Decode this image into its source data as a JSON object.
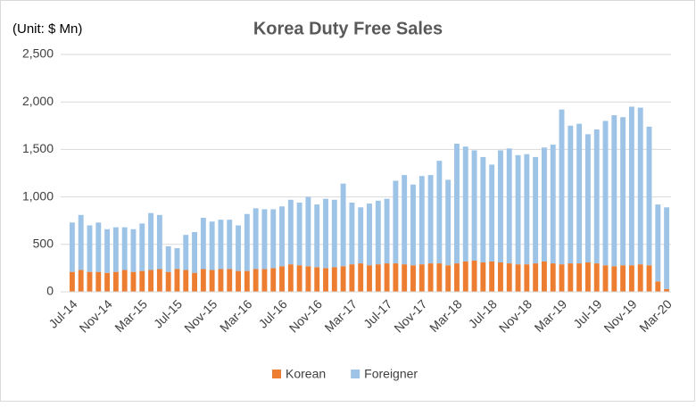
{
  "chart_data": {
    "type": "stacked_bar",
    "title": "Korea Duty Free Sales",
    "annotation": "(Unit: $ Mn)",
    "categories": [
      "Jul-14",
      null,
      null,
      null,
      "Nov-14",
      null,
      null,
      null,
      "Mar-15",
      null,
      null,
      null,
      "Jul-15",
      null,
      null,
      null,
      "Nov-15",
      null,
      null,
      null,
      "Mar-16",
      null,
      null,
      null,
      "Jul-16",
      null,
      null,
      null,
      "Nov-16",
      null,
      null,
      null,
      "Mar-17",
      null,
      null,
      null,
      "Jul-17",
      null,
      null,
      null,
      "Nov-17",
      null,
      null,
      null,
      "Mar-18",
      null,
      null,
      null,
      "Jul-18",
      null,
      null,
      null,
      "Nov-18",
      null,
      null,
      null,
      "Mar-19",
      null,
      null,
      null,
      "Jul-19",
      null,
      null,
      null,
      "Nov-19",
      null,
      null,
      null,
      "Mar-20"
    ],
    "series": [
      {
        "name": "Korean",
        "color": "#ed7d31",
        "values": [
          210,
          230,
          210,
          210,
          200,
          210,
          230,
          210,
          220,
          230,
          240,
          210,
          240,
          230,
          200,
          240,
          230,
          240,
          240,
          220,
          220,
          240,
          240,
          250,
          270,
          290,
          280,
          270,
          260,
          250,
          260,
          270,
          290,
          300,
          280,
          290,
          300,
          300,
          290,
          280,
          290,
          300,
          300,
          280,
          300,
          320,
          330,
          310,
          320,
          310,
          300,
          290,
          290,
          300,
          320,
          300,
          290,
          300,
          300,
          310,
          300,
          280,
          270,
          280,
          280,
          290,
          280,
          110,
          30
        ]
      },
      {
        "name": "Foreigner",
        "color": "#9dc3e6",
        "values": [
          520,
          580,
          490,
          520,
          460,
          470,
          450,
          450,
          500,
          600,
          570,
          270,
          220,
          370,
          430,
          540,
          510,
          520,
          520,
          480,
          600,
          640,
          630,
          620,
          630,
          680,
          660,
          730,
          660,
          730,
          710,
          870,
          650,
          590,
          650,
          670,
          680,
          870,
          940,
          850,
          930,
          930,
          1080,
          900,
          1260,
          1210,
          1160,
          1110,
          1020,
          1180,
          1210,
          1150,
          1160,
          1120,
          1200,
          1250,
          1630,
          1450,
          1470,
          1350,
          1410,
          1520,
          1590,
          1560,
          1670,
          1650,
          1460,
          810,
          860
        ]
      }
    ],
    "ylim": [
      0,
      2500
    ],
    "yticks": [
      0,
      500,
      {
        "value": 1000,
        "label": "1,000"
      },
      {
        "value": 1500,
        "label": "1,500"
      },
      {
        "value": 2000,
        "label": "2,000"
      },
      {
        "value": 2500,
        "label": "2,500"
      }
    ],
    "grid": true,
    "legend": "bottom"
  }
}
